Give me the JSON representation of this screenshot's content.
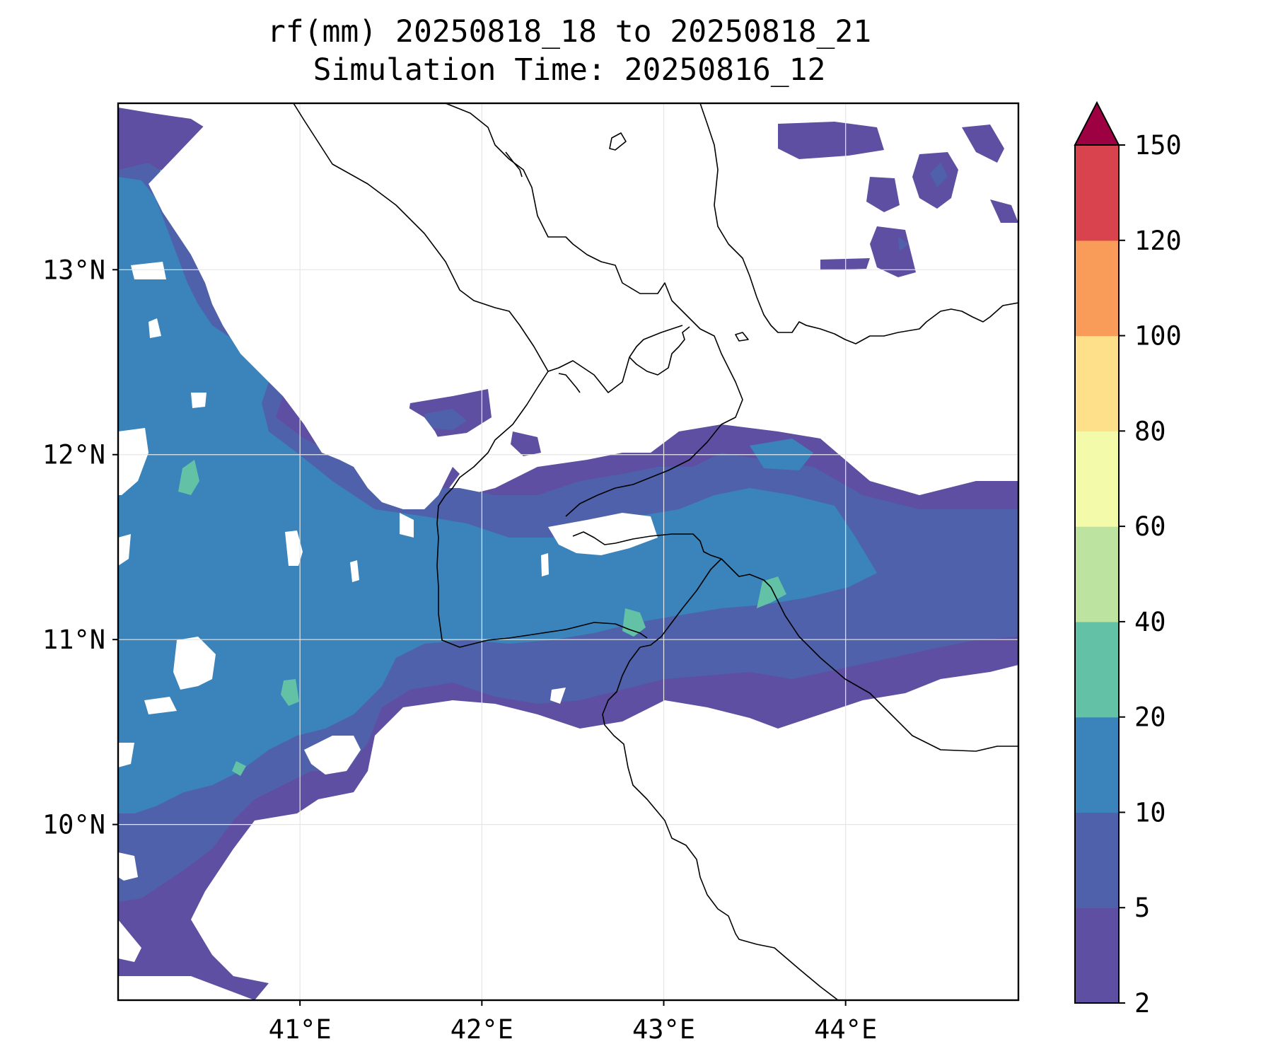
{
  "title": {
    "line1": "rf(mm) 20250818_18 to 20250818_21",
    "line2": "Simulation Time: 20250816_12"
  },
  "map": {
    "extent": {
      "lon_min": 40.0,
      "lon_max": 44.95,
      "lat_min": 9.05,
      "lat_max": 13.9
    },
    "x_ticks": [
      {
        "value": 41,
        "label": "41°E"
      },
      {
        "value": 42,
        "label": "42°E"
      },
      {
        "value": 43,
        "label": "43°E"
      },
      {
        "value": 44,
        "label": "44°E"
      }
    ],
    "y_ticks": [
      {
        "value": 10,
        "label": "10°N"
      },
      {
        "value": 11,
        "label": "11°N"
      },
      {
        "value": 12,
        "label": "12°N"
      },
      {
        "value": 13,
        "label": "13°N"
      }
    ],
    "gridlines": true
  },
  "colorbar": {
    "levels": [
      "2",
      "5",
      "10",
      "20",
      "40",
      "60",
      "80",
      "100",
      "120",
      "150"
    ],
    "colors": [
      "#5e4fa2",
      "#4f61aa",
      "#3a84bb",
      "#63c1a5",
      "#bce4a0",
      "#f3fbab",
      "#fee08b",
      "#f99c5a",
      "#d8434e",
      "#9e0142"
    ],
    "extend": "max"
  },
  "colors": {
    "level_2_5": "#5e4fa2",
    "level_5_10": "#4f61aa",
    "level_10_20": "#3a84bb",
    "level_20_40": "#63c1a5",
    "coastline": "#000000",
    "background": "#ffffff"
  }
}
